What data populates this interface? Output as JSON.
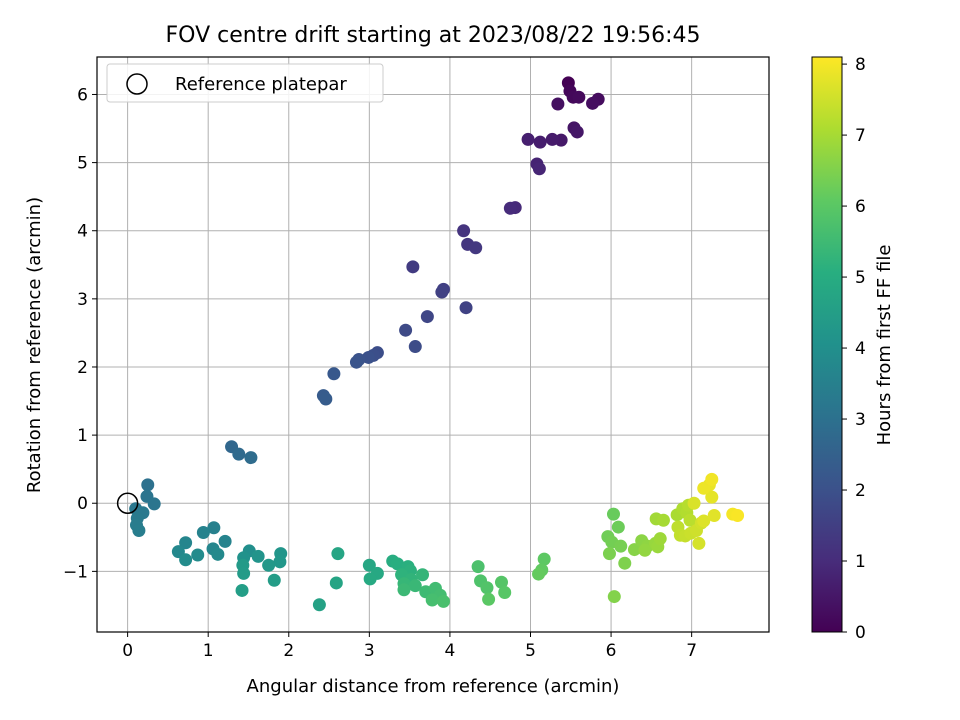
{
  "chart_data": {
    "type": "scatter",
    "title": "FOV centre drift starting at 2023/08/22 19:56:45",
    "xlabel": "Angular distance from reference (arcmin)",
    "ylabel": "Rotation from reference (arcmin)",
    "xlim": [
      -0.38,
      7.96
    ],
    "ylim": [
      -1.89,
      6.55
    ],
    "xticks": [
      0,
      1,
      2,
      3,
      4,
      5,
      6,
      7
    ],
    "yticks": [
      -1,
      0,
      1,
      2,
      3,
      4,
      5,
      6
    ],
    "grid": true,
    "legend": {
      "placement": "top-left",
      "entries": [
        "Reference platepar"
      ]
    },
    "reference_marker": {
      "x": 0,
      "y": 0,
      "label": "Reference platepar"
    },
    "colorbar": {
      "label": "Hours from first FF file",
      "min": 0,
      "max": 8.1,
      "ticks": [
        0,
        1,
        2,
        3,
        4,
        5,
        6,
        7,
        8
      ],
      "colormap": "viridis"
    },
    "series": [
      {
        "points": [
          [
            5.47,
            6.17,
            0.0
          ],
          [
            5.49,
            6.05,
            0.1
          ],
          [
            5.53,
            5.96,
            0.15
          ],
          [
            5.6,
            5.96,
            0.2
          ],
          [
            5.84,
            5.93,
            0.25
          ],
          [
            5.77,
            5.87,
            0.3
          ],
          [
            5.34,
            5.86,
            0.35
          ],
          [
            5.54,
            5.51,
            0.45
          ],
          [
            5.58,
            5.45,
            0.5
          ],
          [
            5.38,
            5.33,
            0.55
          ],
          [
            5.27,
            5.34,
            0.6
          ],
          [
            5.12,
            5.3,
            0.65
          ],
          [
            4.97,
            5.34,
            0.7
          ],
          [
            5.08,
            4.98,
            0.8
          ],
          [
            5.11,
            4.91,
            0.85
          ],
          [
            4.81,
            4.34,
            0.95
          ],
          [
            4.75,
            4.33,
            1.0
          ],
          [
            4.17,
            4.0,
            1.2
          ],
          [
            4.22,
            3.8,
            1.25
          ],
          [
            4.32,
            3.75,
            1.3
          ],
          [
            3.54,
            3.47,
            1.4
          ],
          [
            3.92,
            3.14,
            1.5
          ],
          [
            3.9,
            3.1,
            1.55
          ],
          [
            4.2,
            2.87,
            1.6
          ],
          [
            3.72,
            2.74,
            1.7
          ],
          [
            3.45,
            2.54,
            1.8
          ],
          [
            3.57,
            2.3,
            1.85
          ],
          [
            3.1,
            2.21,
            1.9
          ],
          [
            3.05,
            2.17,
            1.95
          ],
          [
            2.99,
            2.14,
            2.0
          ],
          [
            2.87,
            2.11,
            2.05
          ],
          [
            2.84,
            2.07,
            2.1
          ],
          [
            2.56,
            1.9,
            2.2
          ],
          [
            2.43,
            1.58,
            2.3
          ],
          [
            2.46,
            1.53,
            2.35
          ],
          [
            1.29,
            0.83,
            2.7
          ],
          [
            1.38,
            0.72,
            2.8
          ],
          [
            1.53,
            0.67,
            2.85
          ],
          [
            0.25,
            0.27,
            3.0
          ],
          [
            0.24,
            0.1,
            3.1
          ],
          [
            0.33,
            -0.01,
            3.15
          ],
          [
            0.1,
            -0.08,
            3.2
          ],
          [
            0.19,
            -0.14,
            3.25
          ],
          [
            0.12,
            -0.22,
            3.3
          ],
          [
            0.11,
            -0.32,
            3.35
          ],
          [
            0.14,
            -0.4,
            3.4
          ],
          [
            1.07,
            -0.36,
            3.5
          ],
          [
            0.94,
            -0.43,
            3.55
          ],
          [
            1.21,
            -0.56,
            3.6
          ],
          [
            0.72,
            -0.58,
            3.65
          ],
          [
            1.06,
            -0.67,
            3.7
          ],
          [
            0.63,
            -0.71,
            3.75
          ],
          [
            1.12,
            -0.75,
            3.8
          ],
          [
            0.87,
            -0.76,
            3.85
          ],
          [
            0.72,
            -0.83,
            3.9
          ],
          [
            1.51,
            -0.7,
            4.0
          ],
          [
            1.44,
            -0.8,
            4.1
          ],
          [
            1.62,
            -0.78,
            4.15
          ],
          [
            1.9,
            -0.74,
            4.2
          ],
          [
            1.89,
            -0.86,
            4.25
          ],
          [
            1.75,
            -0.91,
            4.3
          ],
          [
            1.43,
            -0.91,
            4.35
          ],
          [
            1.44,
            -1.03,
            4.4
          ],
          [
            1.82,
            -1.13,
            4.45
          ],
          [
            1.42,
            -1.28,
            4.5
          ],
          [
            2.38,
            -1.49,
            4.6
          ],
          [
            2.59,
            -1.17,
            4.7
          ],
          [
            2.61,
            -0.74,
            4.75
          ],
          [
            3.0,
            -0.91,
            4.8
          ],
          [
            3.1,
            -1.03,
            4.85
          ],
          [
            3.01,
            -1.11,
            4.9
          ],
          [
            3.29,
            -0.85,
            5.0
          ],
          [
            3.35,
            -0.89,
            5.05
          ],
          [
            3.48,
            -0.93,
            5.1
          ],
          [
            3.51,
            -0.99,
            5.15
          ],
          [
            3.4,
            -1.05,
            5.2
          ],
          [
            3.52,
            -1.12,
            5.25
          ],
          [
            3.66,
            -1.05,
            5.3
          ],
          [
            3.43,
            -1.18,
            5.35
          ],
          [
            3.57,
            -1.21,
            5.4
          ],
          [
            3.43,
            -1.27,
            5.45
          ],
          [
            3.7,
            -1.3,
            5.5
          ],
          [
            3.82,
            -1.25,
            5.55
          ],
          [
            3.88,
            -1.35,
            5.6
          ],
          [
            3.78,
            -1.42,
            5.65
          ],
          [
            3.92,
            -1.44,
            5.7
          ],
          [
            4.35,
            -0.93,
            5.75
          ],
          [
            4.38,
            -1.14,
            5.8
          ],
          [
            4.46,
            -1.24,
            5.85
          ],
          [
            4.64,
            -1.16,
            5.9
          ],
          [
            4.68,
            -1.31,
            5.95
          ],
          [
            4.48,
            -1.41,
            6.0
          ],
          [
            5.17,
            -0.82,
            6.05
          ],
          [
            5.14,
            -0.98,
            6.1
          ],
          [
            5.1,
            -1.04,
            6.15
          ],
          [
            6.03,
            -0.16,
            6.2
          ],
          [
            6.09,
            -0.35,
            6.25
          ],
          [
            5.96,
            -0.49,
            6.3
          ],
          [
            6.01,
            -0.57,
            6.35
          ],
          [
            6.12,
            -0.63,
            6.4
          ],
          [
            5.98,
            -0.74,
            6.45
          ],
          [
            6.17,
            -0.88,
            6.5
          ],
          [
            6.04,
            -1.37,
            6.55
          ],
          [
            6.29,
            -0.68,
            6.6
          ],
          [
            6.38,
            -0.55,
            6.65
          ],
          [
            6.45,
            -0.63,
            6.7
          ],
          [
            6.42,
            -0.69,
            6.75
          ],
          [
            6.55,
            -0.59,
            6.8
          ],
          [
            6.58,
            -0.64,
            6.85
          ],
          [
            6.61,
            -0.52,
            6.9
          ],
          [
            6.56,
            -0.23,
            6.95
          ],
          [
            6.65,
            -0.25,
            7.0
          ],
          [
            6.82,
            -0.17,
            7.05
          ],
          [
            6.89,
            -0.08,
            7.1
          ],
          [
            6.94,
            -0.14,
            7.15
          ],
          [
            6.96,
            -0.03,
            7.2
          ],
          [
            6.98,
            -0.25,
            7.25
          ],
          [
            6.83,
            -0.35,
            7.3
          ],
          [
            6.86,
            -0.47,
            7.35
          ],
          [
            6.92,
            -0.48,
            7.4
          ],
          [
            6.99,
            -0.44,
            7.45
          ],
          [
            7.06,
            -0.4,
            7.5
          ],
          [
            7.12,
            -0.29,
            7.55
          ],
          [
            7.09,
            -0.59,
            7.6
          ],
          [
            7.03,
            0.0,
            7.65
          ],
          [
            7.15,
            -0.26,
            7.7
          ],
          [
            7.28,
            -0.18,
            7.75
          ],
          [
            7.25,
            0.09,
            7.8
          ],
          [
            7.22,
            0.27,
            7.85
          ],
          [
            7.15,
            0.22,
            7.9
          ],
          [
            7.25,
            0.35,
            7.95
          ],
          [
            7.51,
            -0.16,
            8.0
          ],
          [
            7.57,
            -0.18,
            8.05
          ]
        ]
      }
    ]
  }
}
